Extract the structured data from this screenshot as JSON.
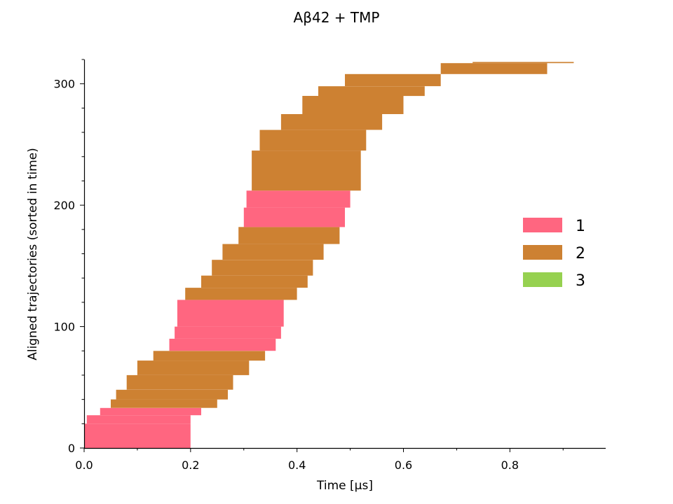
{
  "chart_data": {
    "type": "heatmap",
    "title": "Aβ42 + TMP",
    "xlabel": "Time [μs]",
    "ylabel": "Aligned trajectories (sorted in time)",
    "xlim": [
      0,
      0.98
    ],
    "ylim": [
      0,
      320
    ],
    "x_ticks": [
      0.0,
      0.2,
      0.4,
      0.6,
      0.8
    ],
    "x_tick_labels": [
      "0.0",
      "0.2",
      "0.4",
      "0.6",
      "0.8"
    ],
    "y_ticks": [
      0,
      100,
      200,
      300
    ],
    "y_tick_labels": [
      "0",
      "100",
      "200",
      "300"
    ],
    "grid": false,
    "legend_position": "right",
    "states": [
      {
        "name": "1",
        "color": "#ff6680"
      },
      {
        "name": "2",
        "color": "#cd8132"
      },
      {
        "name": "3",
        "color": "#96d150"
      }
    ],
    "segments": [
      {
        "y": [
          0,
          20
        ],
        "x_start": 0.0,
        "x_end": 0.2,
        "state": 1
      },
      {
        "y": [
          20,
          27
        ],
        "x_start": 0.005,
        "x_end": 0.2,
        "state": 1
      },
      {
        "y": [
          27,
          33
        ],
        "x_start": 0.03,
        "x_end": 0.22,
        "state": 1
      },
      {
        "y": [
          33,
          40
        ],
        "x_start": 0.05,
        "x_end": 0.25,
        "state": 2
      },
      {
        "y": [
          40,
          48
        ],
        "x_start": 0.06,
        "x_end": 0.27,
        "state": 2
      },
      {
        "y": [
          48,
          60
        ],
        "x_start": 0.08,
        "x_end": 0.28,
        "state": 2
      },
      {
        "y": [
          60,
          72
        ],
        "x_start": 0.1,
        "x_end": 0.31,
        "state": 2
      },
      {
        "y": [
          72,
          80
        ],
        "x_start": 0.13,
        "x_end": 0.34,
        "state": 2
      },
      {
        "y": [
          80,
          90
        ],
        "x_start": 0.16,
        "x_end": 0.36,
        "state": 1
      },
      {
        "y": [
          90,
          100
        ],
        "x_start": 0.17,
        "x_end": 0.37,
        "state": 1
      },
      {
        "y": [
          100,
          122
        ],
        "x_start": 0.175,
        "x_end": 0.375,
        "state": 1
      },
      {
        "y": [
          122,
          132
        ],
        "x_start": 0.19,
        "x_end": 0.4,
        "state": 2
      },
      {
        "y": [
          132,
          142
        ],
        "x_start": 0.22,
        "x_end": 0.42,
        "state": 2
      },
      {
        "y": [
          142,
          155
        ],
        "x_start": 0.24,
        "x_end": 0.43,
        "state": 2
      },
      {
        "y": [
          155,
          168
        ],
        "x_start": 0.26,
        "x_end": 0.45,
        "state": 2
      },
      {
        "y": [
          168,
          182
        ],
        "x_start": 0.29,
        "x_end": 0.48,
        "state": 2
      },
      {
        "y": [
          182,
          198
        ],
        "x_start": 0.3,
        "x_end": 0.49,
        "state": 1
      },
      {
        "y": [
          198,
          212
        ],
        "x_start": 0.305,
        "x_end": 0.5,
        "state": 1
      },
      {
        "y": [
          212,
          245
        ],
        "x_start": 0.315,
        "x_end": 0.52,
        "state": 2
      },
      {
        "y": [
          245,
          262
        ],
        "x_start": 0.33,
        "x_end": 0.53,
        "state": 2
      },
      {
        "y": [
          262,
          275
        ],
        "x_start": 0.37,
        "x_end": 0.56,
        "state": 2
      },
      {
        "y": [
          275,
          290
        ],
        "x_start": 0.41,
        "x_end": 0.6,
        "state": 2
      },
      {
        "y": [
          290,
          298
        ],
        "x_start": 0.44,
        "x_end": 0.64,
        "state": 2
      },
      {
        "y": [
          298,
          308
        ],
        "x_start": 0.49,
        "x_end": 0.67,
        "state": 2
      },
      {
        "y": [
          308,
          317
        ],
        "x_start": 0.67,
        "x_end": 0.87,
        "state": 2
      },
      {
        "y": [
          317,
          318
        ],
        "x_start": 0.73,
        "x_end": 0.92,
        "state": 2
      }
    ]
  }
}
